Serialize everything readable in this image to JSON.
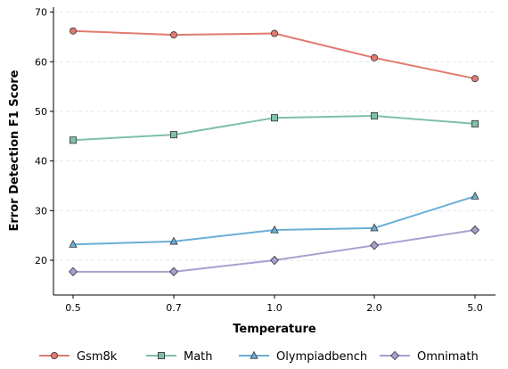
{
  "chart_data": {
    "type": "line",
    "title": "",
    "xlabel": "Temperature",
    "ylabel": "Error Detection F1 Score",
    "categories": [
      "0.5",
      "0.7",
      "1.0",
      "2.0",
      "5.0"
    ],
    "ylim": [
      13,
      71
    ],
    "yticks": [
      20,
      30,
      40,
      50,
      60,
      70
    ],
    "grid": true,
    "legend_position": "bottom",
    "series": [
      {
        "name": "Gsm8k",
        "values": [
          66.2,
          65.4,
          65.7,
          60.8,
          56.6
        ],
        "color": "#e07b70",
        "marker": "circle"
      },
      {
        "name": "Math",
        "values": [
          44.2,
          45.3,
          48.7,
          49.1,
          47.5
        ],
        "color": "#7fbfac",
        "marker": "square"
      },
      {
        "name": "Olympiadbench",
        "values": [
          23.2,
          23.8,
          26.1,
          26.5,
          32.9
        ],
        "color": "#6aaed6",
        "marker": "triangle"
      },
      {
        "name": "Omnimath",
        "values": [
          17.7,
          17.7,
          20.0,
          23.0,
          26.1
        ],
        "color": "#ab9fcf",
        "marker": "diamond"
      }
    ]
  }
}
